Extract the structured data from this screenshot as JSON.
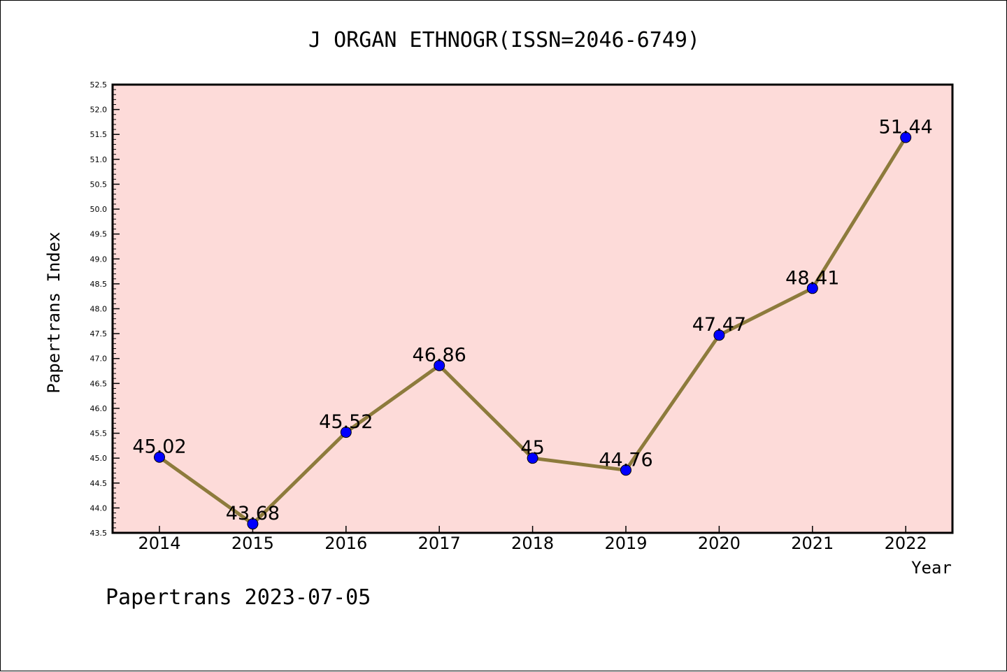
{
  "chart_data": {
    "type": "line",
    "title": "J ORGAN ETHNOGR(ISSN=2046-6749)",
    "xlabel": "Year",
    "ylabel": "Papertrans Index",
    "categories": [
      "2014",
      "2015",
      "2016",
      "2017",
      "2018",
      "2019",
      "2020",
      "2021",
      "2022"
    ],
    "series": [
      {
        "values": [
          45.02,
          43.68,
          45.52,
          46.86,
          45.0,
          44.76,
          47.47,
          48.41,
          51.44
        ],
        "labels": [
          "45.02",
          "43.68",
          "45.52",
          "46.86",
          "45",
          "44.76",
          "47.47",
          "48.41",
          "51.44"
        ]
      }
    ],
    "ylim": [
      43.5,
      52.5
    ],
    "yticks": [
      "43.5",
      "44.0",
      "44.5",
      "45.0",
      "45.5",
      "46.0",
      "46.5",
      "47.0",
      "47.5",
      "48.0",
      "48.5",
      "49.0",
      "49.5",
      "50.0",
      "50.5",
      "51.0",
      "51.5",
      "52.0",
      "52.5"
    ],
    "grid": false,
    "colors": {
      "plot_background": "#fddbd9",
      "line": "#8d7b3c",
      "marker": "#0000ff",
      "marker_edge": "#000000"
    }
  },
  "footer": "Papertrans 2023-07-05"
}
